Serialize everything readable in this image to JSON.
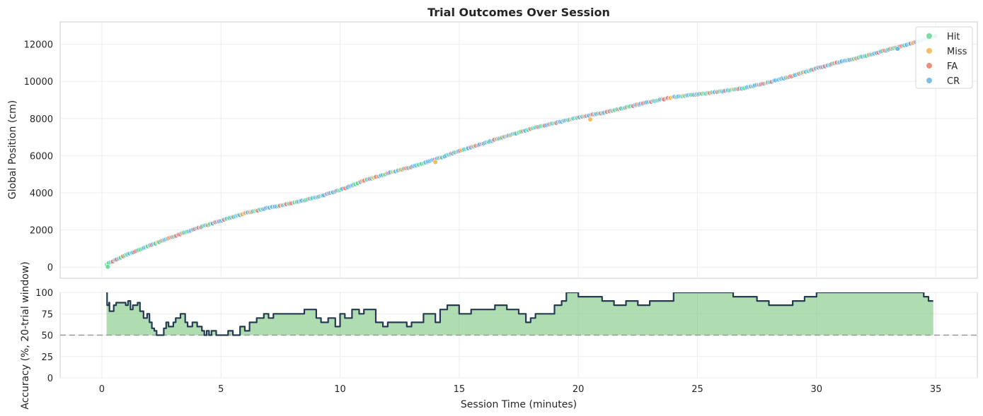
{
  "chart_data": [
    {
      "type": "scatter",
      "title": "Trial Outcomes Over Session",
      "xlabel": "",
      "ylabel": "Global Position (cm)",
      "xlim": [
        -1.75,
        36.75
      ],
      "ylim": [
        -600,
        13200
      ],
      "xticks": [
        0,
        5,
        10,
        15,
        20,
        25,
        30,
        35
      ],
      "yticks": [
        0,
        2000,
        4000,
        6000,
        8000,
        10000,
        12000
      ],
      "grid": true,
      "legend_position": "top-right",
      "series": [
        {
          "name": "Hit",
          "color": "#58d68d"
        },
        {
          "name": "Miss",
          "color": "#f5b041"
        },
        {
          "name": "FA",
          "color": "#ec7063"
        },
        {
          "name": "CR",
          "color": "#5dade2"
        }
      ],
      "trajectory": {
        "x": [
          0.2,
          1.0,
          2.0,
          3.0,
          4.0,
          5.0,
          6.0,
          7.0,
          8.0,
          9.0,
          10.0,
          11.0,
          12.0,
          13.0,
          14.0,
          15.0,
          16.0,
          17.0,
          18.0,
          19.0,
          20.0,
          21.0,
          22.0,
          23.0,
          24.0,
          25.0,
          26.0,
          27.0,
          28.0,
          29.0,
          30.0,
          31.0,
          32.0,
          33.0,
          34.0,
          35.0
        ],
        "y": [
          150,
          650,
          1150,
          1650,
          2100,
          2500,
          2900,
          3200,
          3450,
          3750,
          4150,
          4650,
          5050,
          5400,
          5800,
          6250,
          6650,
          7050,
          7450,
          7750,
          8050,
          8300,
          8600,
          8900,
          9150,
          9300,
          9450,
          9650,
          9950,
          10300,
          10700,
          11050,
          11350,
          11700,
          12050,
          12450
        ]
      },
      "outliers": [
        {
          "x": 0.25,
          "y": 20,
          "series": "Hit"
        },
        {
          "x": 14.0,
          "y": 5650,
          "series": "Miss"
        },
        {
          "x": 20.5,
          "y": 7950,
          "series": "Miss"
        },
        {
          "x": 33.4,
          "y": 11750,
          "series": "CR"
        }
      ]
    },
    {
      "type": "area",
      "title": "",
      "xlabel": "Session Time (minutes)",
      "ylabel": "Accuracy (%, 20-trial window)",
      "xlim": [
        -1.75,
        36.75
      ],
      "ylim": [
        0,
        100
      ],
      "xticks": [
        0,
        5,
        10,
        15,
        20,
        25,
        30,
        35
      ],
      "yticks": [
        0,
        25,
        50,
        75,
        100
      ],
      "grid": true,
      "baseline": 50,
      "fill_color": "#7bc47f",
      "line_color": "#243b53",
      "x": [
        0.2,
        0.22,
        0.3,
        0.32,
        0.5,
        0.6,
        0.8,
        1.0,
        1.1,
        1.2,
        1.3,
        1.5,
        1.6,
        1.75,
        1.9,
        2.0,
        2.1,
        2.2,
        2.3,
        2.5,
        2.6,
        2.7,
        2.8,
        3.0,
        3.1,
        3.3,
        3.5,
        3.6,
        3.8,
        4.0,
        4.2,
        4.3,
        4.4,
        4.5,
        4.6,
        4.8,
        5.0,
        5.3,
        5.5,
        5.8,
        6.0,
        6.2,
        6.5,
        6.8,
        7.0,
        7.2,
        7.5,
        8.0,
        8.5,
        9.0,
        9.2,
        9.5,
        9.8,
        10.0,
        10.2,
        10.5,
        10.8,
        11.0,
        11.5,
        11.8,
        12.0,
        12.5,
        12.8,
        13.0,
        13.5,
        14.0,
        14.2,
        14.5,
        15.0,
        15.5,
        16.0,
        16.5,
        17.0,
        17.5,
        17.8,
        18.0,
        18.2,
        18.5,
        19.0,
        19.3,
        19.5,
        20.0,
        20.5,
        21.0,
        21.5,
        22.0,
        22.5,
        23.0,
        23.5,
        24.0,
        24.2,
        24.5,
        25.0,
        25.5,
        26.0,
        26.5,
        27.0,
        27.5,
        28.0,
        28.5,
        29.0,
        29.5,
        30.0,
        30.5,
        31.0,
        31.5,
        32.0,
        32.5,
        33.0,
        33.5,
        34.0,
        34.5,
        34.7,
        34.9
      ],
      "y": [
        100,
        85,
        88,
        78,
        85,
        88,
        88,
        85,
        90,
        80,
        85,
        88,
        78,
        70,
        75,
        65,
        58,
        55,
        50,
        50,
        58,
        65,
        60,
        65,
        70,
        75,
        65,
        60,
        65,
        60,
        55,
        50,
        55,
        50,
        55,
        50,
        50,
        55,
        50,
        60,
        55,
        65,
        70,
        75,
        70,
        75,
        75,
        75,
        80,
        70,
        65,
        70,
        60,
        75,
        70,
        80,
        75,
        80,
        65,
        60,
        65,
        65,
        60,
        65,
        75,
        65,
        80,
        85,
        75,
        80,
        80,
        85,
        80,
        75,
        65,
        70,
        75,
        75,
        85,
        90,
        100,
        95,
        95,
        90,
        85,
        90,
        85,
        90,
        90,
        100,
        100,
        100,
        100,
        100,
        100,
        95,
        95,
        90,
        85,
        85,
        90,
        95,
        100,
        100,
        100,
        100,
        100,
        100,
        100,
        100,
        100,
        95,
        90,
        90
      ]
    }
  ]
}
